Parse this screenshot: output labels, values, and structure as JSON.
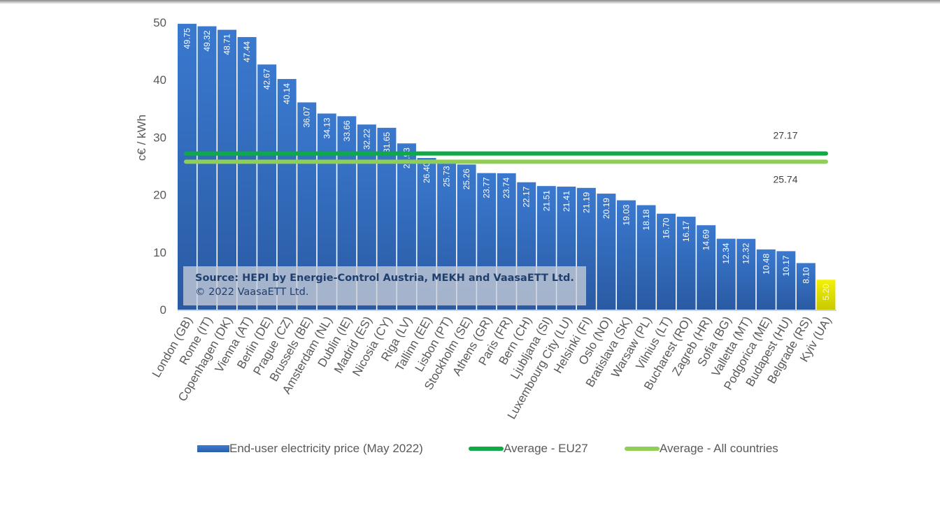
{
  "chart_data": {
    "type": "bar",
    "title": "",
    "xlabel": "",
    "ylabel": "c€ / kWh",
    "ylim": [
      0,
      50
    ],
    "yticks": [
      0,
      10,
      20,
      30,
      40,
      50
    ],
    "grid": false,
    "legend_position": "bottom",
    "categories": [
      "London (GB)",
      "Rome (IT)",
      "Copenhagen (DK)",
      "Vienna (AT)",
      "Berlin (DE)",
      "Prague (CZ)",
      "Brussels (BE)",
      "Amsterdam (NL)",
      "Dublin (IE)",
      "Madrid (ES)",
      "Nicosia (CY)",
      "Riga (LV)",
      "Tallinn (EE)",
      "Lisbon (PT)",
      "Stockholm (SE)",
      "Athens (GR)",
      "Paris (FR)",
      "Bern (CH)",
      "Ljubljana (SI)",
      "Luxembourg City (LU)",
      "Helsinki (FI)",
      "Oslo (NO)",
      "Bratislava (SK)",
      "Warsaw (PL)",
      "Vilnius (LT)",
      "Bucharest (RO)",
      "Zagreb (HR)",
      "Sofia (BG)",
      "Valletta (MT)",
      "Podgorica (ME)",
      "Budapest (HU)",
      "Belgrade (RS)",
      "Kyiv (UA)"
    ],
    "series": [
      {
        "name": "End-user electricity price (May 2022)",
        "type": "bar",
        "color": "#3366b8",
        "highlight": {
          "category": "Kyiv (UA)",
          "color": "#e6e600"
        },
        "values": [
          49.75,
          49.32,
          48.71,
          47.44,
          42.67,
          40.14,
          36.07,
          34.13,
          33.66,
          32.22,
          31.65,
          28.93,
          26.4,
          25.73,
          25.26,
          23.77,
          23.74,
          22.17,
          21.51,
          21.41,
          21.19,
          20.19,
          19.03,
          18.18,
          16.7,
          16.17,
          14.69,
          12.34,
          12.32,
          10.48,
          10.17,
          8.1,
          5.2
        ],
        "labels": [
          "49.75",
          "49.32",
          "48.71",
          "47.44",
          "42.67",
          "40.14",
          "36.07",
          "34.13",
          "33.66",
          "32.22",
          "31.65",
          "28.93",
          "26.40",
          "25.73",
          "25.26",
          "23.77",
          "23.74",
          "22.17",
          "21.51",
          "21.41",
          "21.19",
          "20.19",
          "19.03",
          "18.18",
          "16.70",
          "16.17",
          "14.69",
          "12.34",
          "12.32",
          "10.48",
          "10.17",
          "8.10",
          "5.20"
        ]
      },
      {
        "name": "Average - EU27",
        "type": "line",
        "color": "#0daa45",
        "value": 27.17,
        "label": "27.17"
      },
      {
        "name": "Average - All countries",
        "type": "line",
        "color": "#8fcf56",
        "value": 25.74,
        "label": "25.74"
      }
    ],
    "annotations": {
      "source_line1": "Source: HEPI by Energie-Control Austria, MEKH and VaasaETT Ltd.",
      "source_line2": "© 2022 VaasaETT Ltd."
    }
  },
  "legend": [
    {
      "label": "End-user electricity price (May 2022)",
      "icon": "bar-swatch"
    },
    {
      "label": "Average - EU27",
      "icon": "line-swatch"
    },
    {
      "label": "Average - All countries",
      "icon": "line-swatch"
    }
  ]
}
